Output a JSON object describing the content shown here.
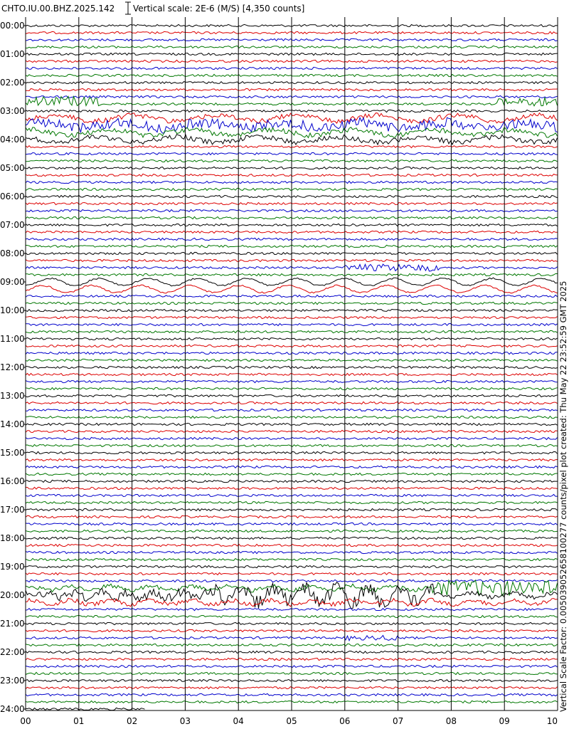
{
  "header": {
    "station": "CHTO.IU.00.BHZ.2025.142",
    "scale": "Vertical scale: 2E-6 (M/S) [4,350 counts]"
  },
  "y_labels": [
    "00:00",
    "01:00",
    "02:00",
    "03:00",
    "04:00",
    "05:00",
    "06:00",
    "07:00",
    "08:00",
    "09:00",
    "10:00",
    "11:00",
    "12:00",
    "13:00",
    "14:00",
    "15:00",
    "16:00",
    "17:00",
    "18:00",
    "19:00",
    "20:00",
    "21:00",
    "22:00",
    "23:00",
    "24:00"
  ],
  "x_labels": [
    "00",
    "01",
    "02",
    "03",
    "04",
    "05",
    "06",
    "07",
    "08",
    "09",
    "10"
  ],
  "side_text": "Vertical Scale Factor: 0.005039052658100277 counts/pixel plot created: Thu May 22 23:52:59 GMT 2025"
}
